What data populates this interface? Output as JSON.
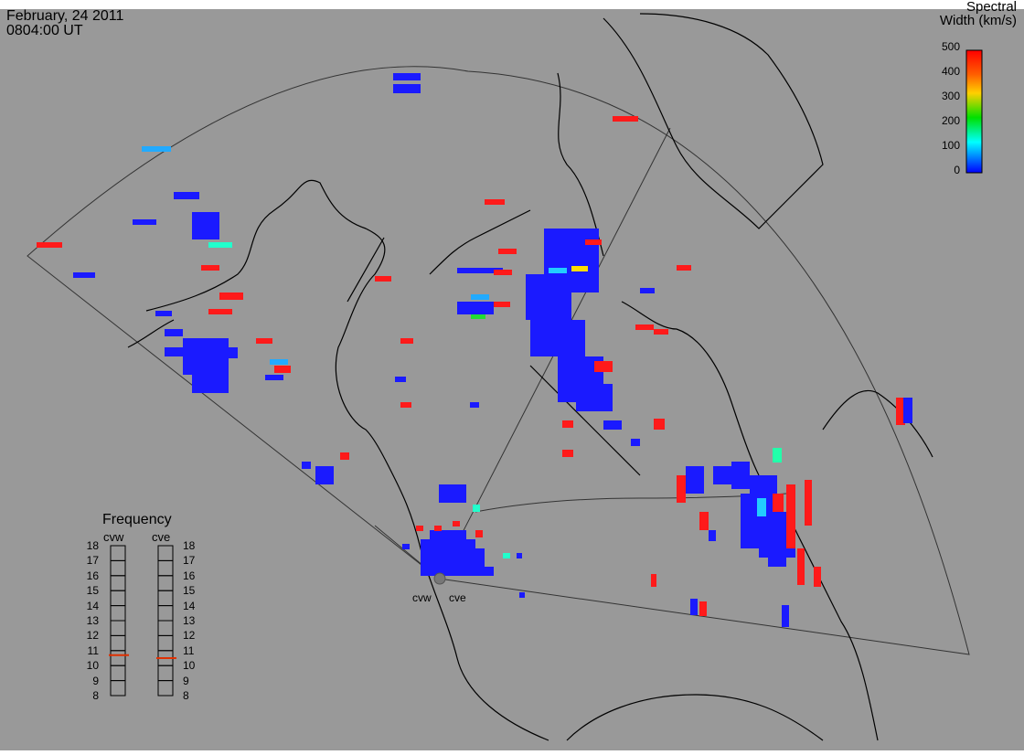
{
  "header": {
    "date": "February, 24 2011",
    "time": "0804:00 UT"
  },
  "colorbar": {
    "title_line1": "Spectral",
    "title_line2": "Width (km/s)",
    "ticks": [
      "500",
      "400",
      "300",
      "200",
      "100",
      "0"
    ],
    "colors": [
      "#ff0000",
      "#ff7f00",
      "#ffff00",
      "#00ff00",
      "#00ffff",
      "#0000ff"
    ]
  },
  "frequency": {
    "title": "Frequency",
    "radars": [
      {
        "name": "cvw",
        "freq": 10.7
      },
      {
        "name": "cve",
        "freq": 10.5
      }
    ],
    "scale": [
      "18",
      "17",
      "16",
      "15",
      "14",
      "13",
      "12",
      "11",
      "10",
      "9",
      "8"
    ]
  },
  "radar_sites": {
    "cvw": "cvw",
    "cve": "cve"
  },
  "map_colors": {
    "background": "#999999",
    "coast": "#000000",
    "fov": "#333333"
  }
}
